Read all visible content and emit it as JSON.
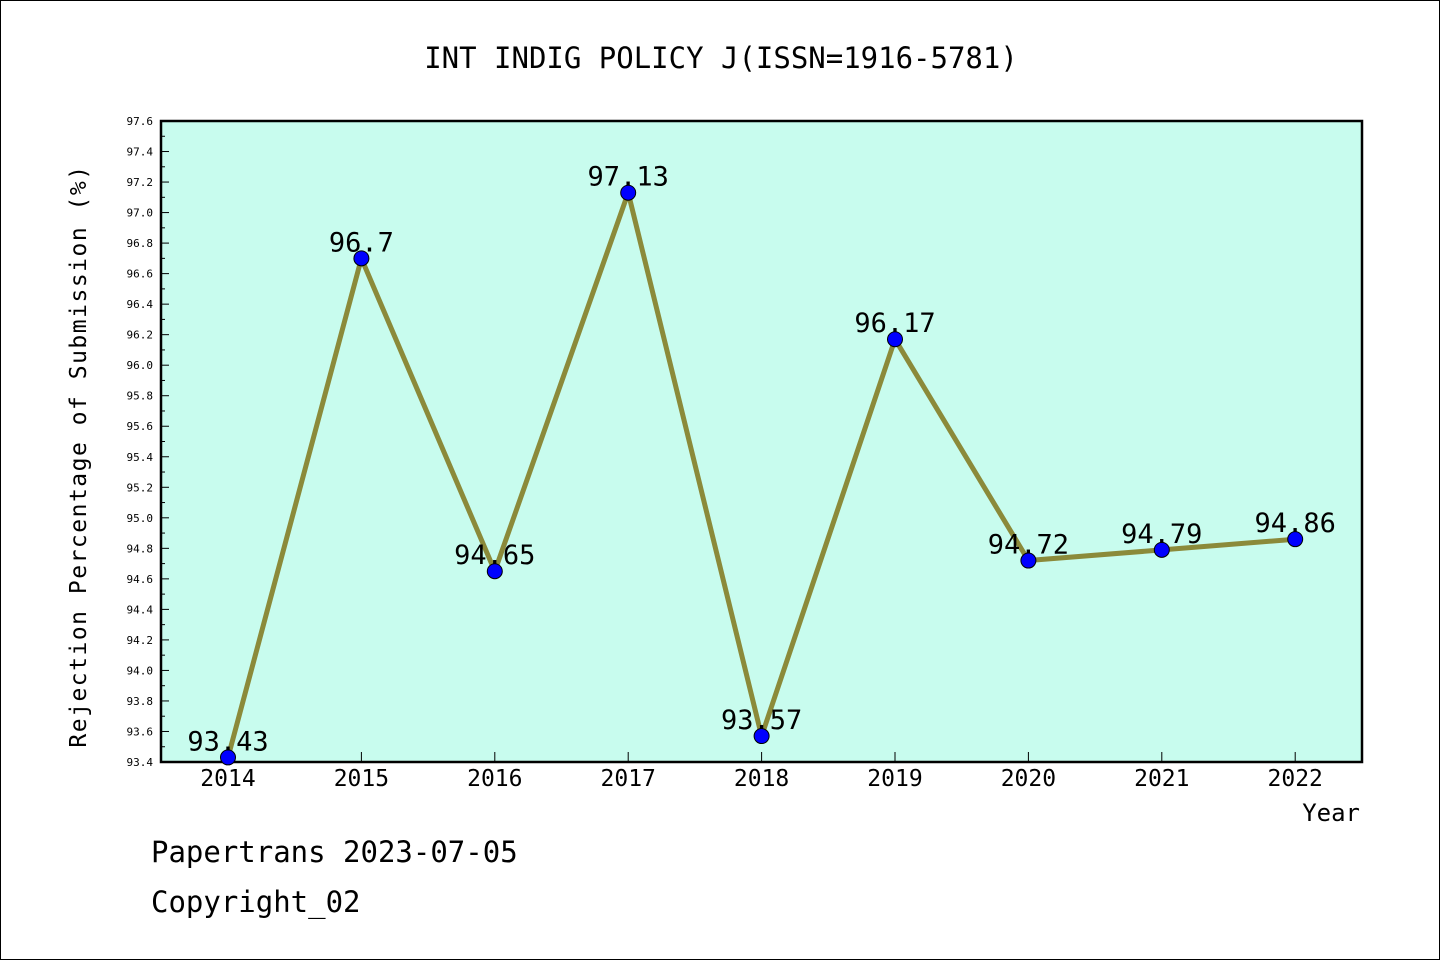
{
  "chart_data": {
    "type": "line",
    "title": "INT INDIG POLICY J(ISSN=1916-5781)",
    "xlabel": "Year",
    "ylabel": "Rejection Percentage of Submission (%)",
    "categories": [
      "2014",
      "2015",
      "2016",
      "2017",
      "2018",
      "2019",
      "2020",
      "2021",
      "2022"
    ],
    "series": [
      {
        "values": [
          93.43,
          96.7,
          94.65,
          97.13,
          93.57,
          96.17,
          94.72,
          94.79,
          94.86
        ],
        "data_labels": [
          "93.43",
          "96.7",
          "94.65",
          "97.13",
          "93.57",
          "96.17",
          "94.72",
          "94.79",
          "94.86"
        ]
      }
    ],
    "ylim": [
      93.4,
      97.6
    ],
    "yticks": [
      "93.4",
      "93.6",
      "93.8",
      "94.0",
      "94.2",
      "94.4",
      "94.6",
      "94.8",
      "95.0",
      "95.2",
      "95.4",
      "95.6",
      "95.8",
      "96.0",
      "96.2",
      "96.4",
      "96.6",
      "96.8",
      "97.0",
      "97.2",
      "97.4",
      "97.6"
    ],
    "grid": false,
    "legend": "none",
    "colors": {
      "plot_background": "#c8fcee",
      "line": "#8b8a3a",
      "marker": "#0000ff"
    }
  },
  "footer": {
    "line1": "Papertrans 2023-07-05",
    "line2": "Copyright_02"
  }
}
